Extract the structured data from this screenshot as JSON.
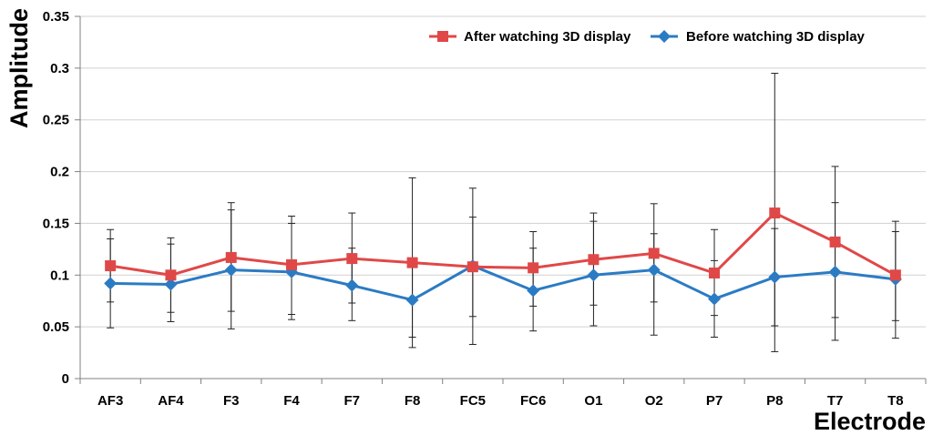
{
  "chart_data": {
    "type": "line",
    "title": "",
    "xlabel": "Electrode",
    "ylabel": "Amplitude",
    "ylim": [
      0,
      0.35
    ],
    "yticks": [
      "0",
      "0.05",
      "0.1",
      "0.15",
      "0.2",
      "0.25",
      "0.3",
      "0.35"
    ],
    "categories": [
      "AF3",
      "AF4",
      "F3",
      "F4",
      "F7",
      "F8",
      "FC5",
      "FC6",
      "O1",
      "O2",
      "P7",
      "P8",
      "T7",
      "T8"
    ],
    "legend_position": "top-right",
    "series": [
      {
        "name": "After watching 3D display",
        "color": "#e04848",
        "marker": "square",
        "values": [
          0.109,
          0.1,
          0.117,
          0.11,
          0.116,
          0.112,
          0.108,
          0.107,
          0.115,
          0.121,
          0.102,
          0.16,
          0.132,
          0.1
        ],
        "err_low": [
          0.049,
          0.055,
          0.048,
          0.057,
          0.056,
          0.03,
          0.033,
          0.046,
          0.051,
          0.042,
          0.04,
          0.026,
          0.037,
          0.039
        ],
        "err_high": [
          0.144,
          0.136,
          0.17,
          0.157,
          0.16,
          0.194,
          0.184,
          0.142,
          0.16,
          0.169,
          0.144,
          0.295,
          0.205,
          0.152
        ]
      },
      {
        "name": "Before watching 3D display",
        "color": "#2b7bc4",
        "marker": "diamond",
        "values": [
          0.092,
          0.091,
          0.105,
          0.103,
          0.09,
          0.076,
          0.109,
          0.085,
          0.1,
          0.105,
          0.077,
          0.098,
          0.103,
          0.096
        ],
        "err_low": [
          0.074,
          0.064,
          0.065,
          0.062,
          0.073,
          0.04,
          0.06,
          0.07,
          0.071,
          0.074,
          0.061,
          0.051,
          0.059,
          0.056
        ],
        "err_high": [
          0.135,
          0.13,
          0.163,
          0.15,
          0.126,
          0.112,
          0.156,
          0.126,
          0.152,
          0.14,
          0.114,
          0.145,
          0.17,
          0.142
        ]
      }
    ]
  }
}
